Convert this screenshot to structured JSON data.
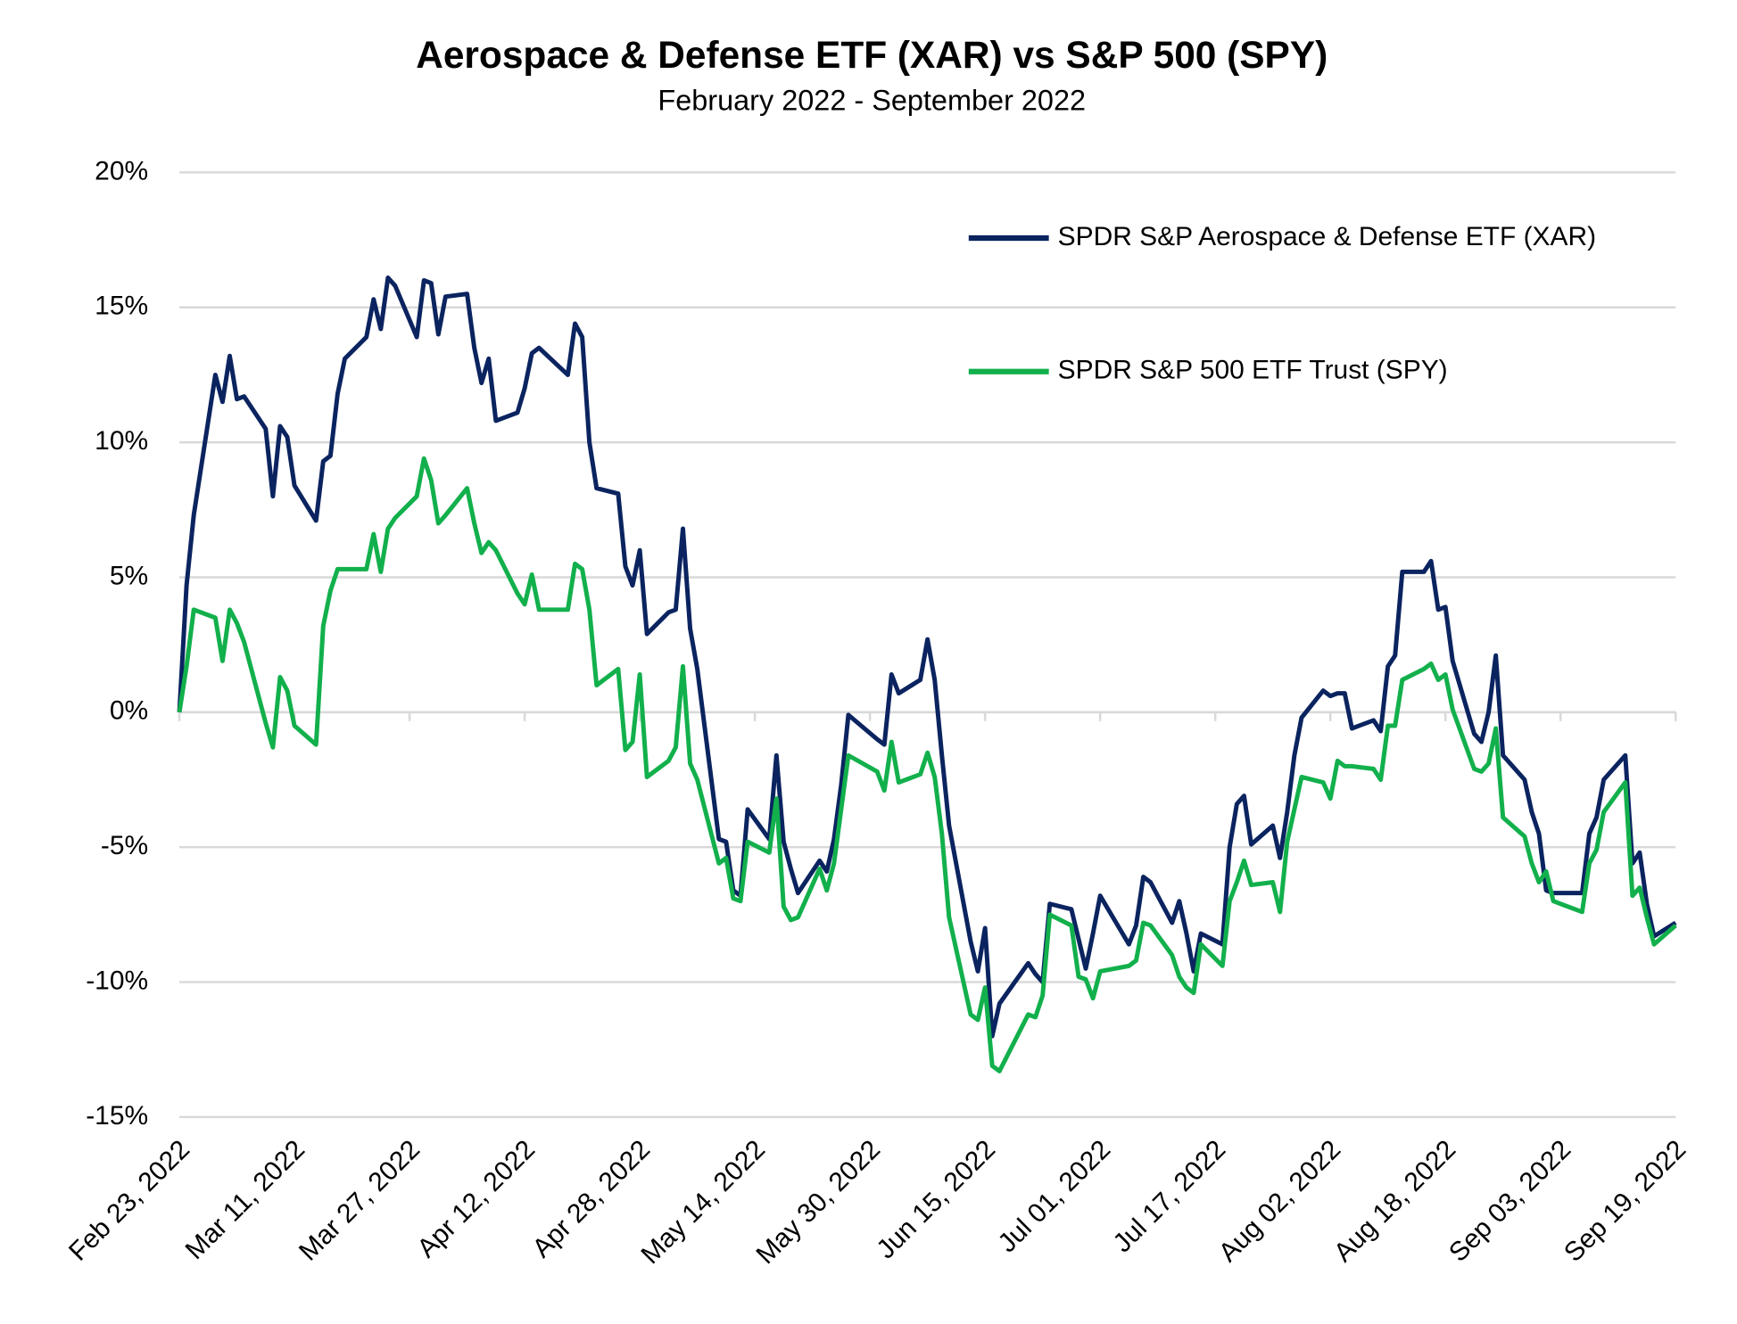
{
  "chart_data": {
    "type": "line",
    "title": "Aerospace & Defense ETF (XAR) vs S&P 500 (SPY)",
    "subtitle": "February 2022 - September 2022",
    "x": [
      "2022-02-23",
      "2022-02-24",
      "2022-02-25",
      "2022-02-28",
      "2022-03-01",
      "2022-03-02",
      "2022-03-03",
      "2022-03-04",
      "2022-03-07",
      "2022-03-08",
      "2022-03-09",
      "2022-03-10",
      "2022-03-11",
      "2022-03-14",
      "2022-03-15",
      "2022-03-16",
      "2022-03-17",
      "2022-03-18",
      "2022-03-21",
      "2022-03-22",
      "2022-03-23",
      "2022-03-24",
      "2022-03-25",
      "2022-03-28",
      "2022-03-29",
      "2022-03-30",
      "2022-03-31",
      "2022-04-01",
      "2022-04-04",
      "2022-04-05",
      "2022-04-06",
      "2022-04-07",
      "2022-04-08",
      "2022-04-11",
      "2022-04-12",
      "2022-04-13",
      "2022-04-14",
      "2022-04-18",
      "2022-04-19",
      "2022-04-20",
      "2022-04-21",
      "2022-04-22",
      "2022-04-25",
      "2022-04-26",
      "2022-04-27",
      "2022-04-28",
      "2022-04-29",
      "2022-05-02",
      "2022-05-03",
      "2022-05-04",
      "2022-05-05",
      "2022-05-06",
      "2022-05-09",
      "2022-05-10",
      "2022-05-11",
      "2022-05-12",
      "2022-05-13",
      "2022-05-16",
      "2022-05-17",
      "2022-05-18",
      "2022-05-19",
      "2022-05-20",
      "2022-05-23",
      "2022-05-24",
      "2022-05-25",
      "2022-05-26",
      "2022-05-27",
      "2022-05-31",
      "2022-06-01",
      "2022-06-02",
      "2022-06-03",
      "2022-06-06",
      "2022-06-07",
      "2022-06-08",
      "2022-06-09",
      "2022-06-10",
      "2022-06-13",
      "2022-06-14",
      "2022-06-15",
      "2022-06-16",
      "2022-06-17",
      "2022-06-21",
      "2022-06-22",
      "2022-06-23",
      "2022-06-24",
      "2022-06-27",
      "2022-06-28",
      "2022-06-29",
      "2022-06-30",
      "2022-07-01",
      "2022-07-05",
      "2022-07-06",
      "2022-07-07",
      "2022-07-08",
      "2022-07-11",
      "2022-07-12",
      "2022-07-13",
      "2022-07-14",
      "2022-07-15",
      "2022-07-18",
      "2022-07-19",
      "2022-07-20",
      "2022-07-21",
      "2022-07-22",
      "2022-07-25",
      "2022-07-26",
      "2022-07-27",
      "2022-07-28",
      "2022-07-29",
      "2022-08-01",
      "2022-08-02",
      "2022-08-03",
      "2022-08-04",
      "2022-08-05",
      "2022-08-08",
      "2022-08-09",
      "2022-08-10",
      "2022-08-11",
      "2022-08-12",
      "2022-08-15",
      "2022-08-16",
      "2022-08-17",
      "2022-08-18",
      "2022-08-19",
      "2022-08-22",
      "2022-08-23",
      "2022-08-24",
      "2022-08-25",
      "2022-08-26",
      "2022-08-29",
      "2022-08-30",
      "2022-08-31",
      "2022-09-01",
      "2022-09-02",
      "2022-09-06",
      "2022-09-07",
      "2022-09-08",
      "2022-09-09",
      "2022-09-12",
      "2022-09-13",
      "2022-09-14",
      "2022-09-15",
      "2022-09-16",
      "2022-09-19"
    ],
    "series": [
      {
        "name": "SPDR S&P Aerospace & Defense ETF (XAR)",
        "color": "#0b2460",
        "values": [
          0,
          4.7,
          7.3,
          12.5,
          11.5,
          13.2,
          11.6,
          11.7,
          10.5,
          8.0,
          10.6,
          10.2,
          8.4,
          7.1,
          9.3,
          9.5,
          11.8,
          13.1,
          13.9,
          15.3,
          14.2,
          16.1,
          15.8,
          13.9,
          16.0,
          15.9,
          14.0,
          15.4,
          15.5,
          13.5,
          12.2,
          13.1,
          10.8,
          11.1,
          12.0,
          13.3,
          13.5,
          12.5,
          14.4,
          13.9,
          10.0,
          8.3,
          8.1,
          5.4,
          4.7,
          6.0,
          2.9,
          3.7,
          3.8,
          6.8,
          3.1,
          1.6,
          -4.7,
          -4.8,
          -6.6,
          -6.8,
          -3.6,
          -4.7,
          -1.6,
          -4.8,
          -5.8,
          -6.7,
          -5.5,
          -5.9,
          -4.7,
          -2.7,
          -0.1,
          -1.0,
          -1.2,
          1.4,
          0.7,
          1.2,
          2.7,
          1.2,
          -1.6,
          -4.2,
          -8.5,
          -9.6,
          -8.0,
          -12.0,
          -10.8,
          -9.3,
          -9.7,
          -10.0,
          -7.1,
          -7.3,
          -8.4,
          -9.5,
          -8.2,
          -6.8,
          -8.6,
          -7.9,
          -6.1,
          -6.3,
          -7.8,
          -7.0,
          -8.2,
          -9.6,
          -8.2,
          -8.6,
          -5.0,
          -3.4,
          -3.1,
          -4.9,
          -4.2,
          -5.4,
          -3.7,
          -1.6,
          -0.2,
          0.8,
          0.6,
          0.7,
          0.7,
          -0.6,
          -0.3,
          -0.7,
          1.7,
          2.1,
          5.2,
          5.2,
          5.6,
          3.8,
          3.9,
          1.9,
          -0.8,
          -1.1,
          0.0,
          2.1,
          -1.6,
          -2.5,
          -3.7,
          -4.5,
          -6.6,
          -6.7,
          -6.7,
          -4.5,
          -3.9,
          -2.5,
          -1.6,
          -5.6,
          -5.2,
          -7.1,
          -8.3,
          -7.8
        ]
      },
      {
        "name": "SPDR S&P 500 ETF Trust (SPY)",
        "color": "#12b04c",
        "values": [
          0,
          1.7,
          3.8,
          3.5,
          1.9,
          3.8,
          3.3,
          2.6,
          -0.4,
          -1.3,
          1.3,
          0.8,
          -0.5,
          -1.2,
          3.2,
          4.5,
          5.3,
          5.3,
          5.3,
          6.6,
          5.2,
          6.8,
          7.2,
          8.0,
          9.4,
          8.6,
          7.0,
          7.3,
          8.3,
          7.0,
          5.9,
          6.3,
          6.0,
          4.4,
          4.0,
          5.1,
          3.8,
          3.8,
          5.5,
          5.3,
          3.8,
          1.0,
          1.6,
          -1.4,
          -1.1,
          1.4,
          -2.4,
          -1.8,
          -1.3,
          1.7,
          -1.9,
          -2.5,
          -5.6,
          -5.4,
          -6.9,
          -7.0,
          -4.8,
          -5.2,
          -3.2,
          -7.2,
          -7.7,
          -7.6,
          -5.8,
          -6.6,
          -5.6,
          -3.6,
          -1.6,
          -2.2,
          -2.9,
          -1.1,
          -2.6,
          -2.3,
          -1.5,
          -2.4,
          -4.5,
          -7.6,
          -11.2,
          -11.4,
          -10.2,
          -13.1,
          -13.3,
          -11.2,
          -11.3,
          -10.5,
          -7.5,
          -7.9,
          -9.8,
          -9.9,
          -10.6,
          -9.6,
          -9.4,
          -9.2,
          -7.8,
          -7.9,
          -9.0,
          -9.8,
          -10.2,
          -10.4,
          -8.6,
          -9.4,
          -7.0,
          -6.3,
          -5.5,
          -6.4,
          -6.3,
          -7.4,
          -4.8,
          -3.6,
          -2.4,
          -2.6,
          -3.2,
          -1.8,
          -2.0,
          -2.0,
          -2.1,
          -2.5,
          -0.5,
          -0.5,
          1.2,
          1.6,
          1.8,
          1.2,
          1.4,
          0.1,
          -2.1,
          -2.2,
          -1.9,
          -0.6,
          -3.9,
          -4.6,
          -5.6,
          -6.3,
          -5.9,
          -7.0,
          -7.4,
          -5.6,
          -5.1,
          -3.7,
          -2.6,
          -6.8,
          -6.5,
          -7.6,
          -8.6,
          -7.9
        ]
      }
    ],
    "xlim": [
      "2022-02-23",
      "2022-09-19"
    ],
    "xticks": [
      {
        "value": "2022-02-23",
        "label": "Feb 23, 2022"
      },
      {
        "value": "2022-03-11",
        "label": "Mar 11, 2022"
      },
      {
        "value": "2022-03-27",
        "label": "Mar 27, 2022"
      },
      {
        "value": "2022-04-12",
        "label": "Apr 12, 2022"
      },
      {
        "value": "2022-04-28",
        "label": "Apr 28, 2022"
      },
      {
        "value": "2022-05-14",
        "label": "May 14, 2022"
      },
      {
        "value": "2022-05-30",
        "label": "May 30, 2022"
      },
      {
        "value": "2022-06-15",
        "label": "Jun 15, 2022"
      },
      {
        "value": "2022-07-01",
        "label": "Jul 01, 2022"
      },
      {
        "value": "2022-07-17",
        "label": "Jul 17, 2022"
      },
      {
        "value": "2022-08-02",
        "label": "Aug 02, 2022"
      },
      {
        "value": "2022-08-18",
        "label": "Aug 18, 2022"
      },
      {
        "value": "2022-09-03",
        "label": "Sep 03, 2022"
      },
      {
        "value": "2022-09-19",
        "label": "Sep 19, 2022"
      }
    ],
    "ylim": [
      -15,
      20
    ],
    "yticks": [
      {
        "value": -15,
        "label": "-15%"
      },
      {
        "value": -10,
        "label": "-10%"
      },
      {
        "value": -5,
        "label": "-5%"
      },
      {
        "value": 0,
        "label": "0%"
      },
      {
        "value": 5,
        "label": "5%"
      },
      {
        "value": 10,
        "label": "10%"
      },
      {
        "value": 15,
        "label": "15%"
      },
      {
        "value": 20,
        "label": "20%"
      }
    ],
    "grid": true,
    "legend": "top-right"
  }
}
